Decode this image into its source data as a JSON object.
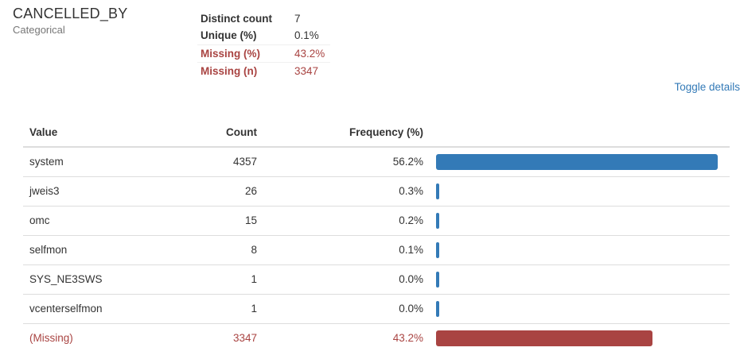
{
  "variable": {
    "name": "CANCELLED_BY",
    "type": "Categorical"
  },
  "stats": [
    {
      "label": "Distinct count",
      "value": "7",
      "alert": false
    },
    {
      "label": "Unique (%)",
      "value": "0.1%",
      "alert": false
    },
    {
      "label": "Missing (%)",
      "value": "43.2%",
      "alert": true
    },
    {
      "label": "Missing (n)",
      "value": "3347",
      "alert": true
    }
  ],
  "toggle_label": "Toggle details",
  "table": {
    "headers": {
      "value": "Value",
      "count": "Count",
      "frequency": "Frequency (%)"
    },
    "max_fraction": 0.562,
    "rows": [
      {
        "value": "system",
        "count": "4357",
        "percent": "56.2%",
        "fraction": 0.562,
        "missing": false
      },
      {
        "value": "jweis3",
        "count": "26",
        "percent": "0.3%",
        "fraction": 0.003,
        "missing": false
      },
      {
        "value": "omc",
        "count": "15",
        "percent": "0.2%",
        "fraction": 0.002,
        "missing": false
      },
      {
        "value": "selfmon",
        "count": "8",
        "percent": "0.1%",
        "fraction": 0.001,
        "missing": false
      },
      {
        "value": "SYS_NE3SWS",
        "count": "1",
        "percent": "0.0%",
        "fraction": 0.0,
        "missing": false
      },
      {
        "value": "vcenterselfmon",
        "count": "1",
        "percent": "0.0%",
        "fraction": 0.0,
        "missing": false
      },
      {
        "value": "(Missing)",
        "count": "3347",
        "percent": "43.2%",
        "fraction": 0.432,
        "missing": true
      }
    ]
  },
  "colors": {
    "bar": "#337ab7",
    "missing": "#a94442",
    "link": "#337ab7"
  }
}
